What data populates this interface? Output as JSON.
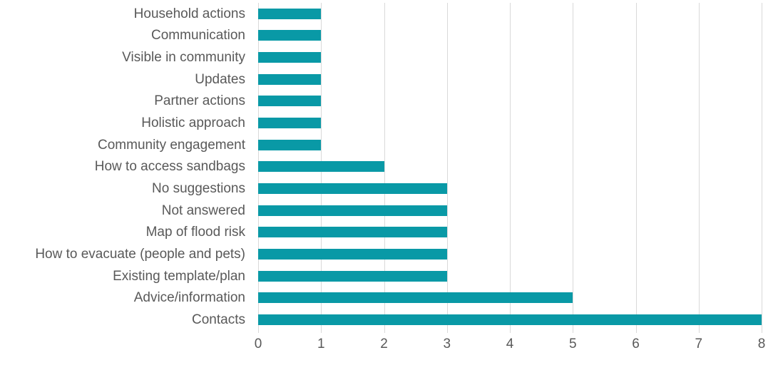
{
  "chart_data": {
    "type": "bar",
    "orientation": "horizontal",
    "title": "",
    "xlabel": "",
    "ylabel": "",
    "categories": [
      "Household actions",
      "Communication",
      "Visible in community",
      "Updates",
      "Partner actions",
      "Holistic approach",
      "Community engagement",
      "How to access sandbags",
      "No suggestions",
      "Not answered",
      "Map of flood risk",
      "How to evacuate (people and pets)",
      "Existing template/plan",
      "Advice/information",
      "Contacts"
    ],
    "values": [
      1,
      1,
      1,
      1,
      1,
      1,
      1,
      2,
      3,
      3,
      3,
      3,
      3,
      5,
      8
    ],
    "xlim": [
      0,
      8
    ],
    "x_ticks": [
      "0",
      "1",
      "2",
      "3",
      "4",
      "5",
      "6",
      "7",
      "8"
    ],
    "grid": "vertical",
    "legend": "none",
    "colors": {
      "bar": "#0999a6",
      "gridline": "#d9d9d9",
      "text": "#595959"
    }
  }
}
